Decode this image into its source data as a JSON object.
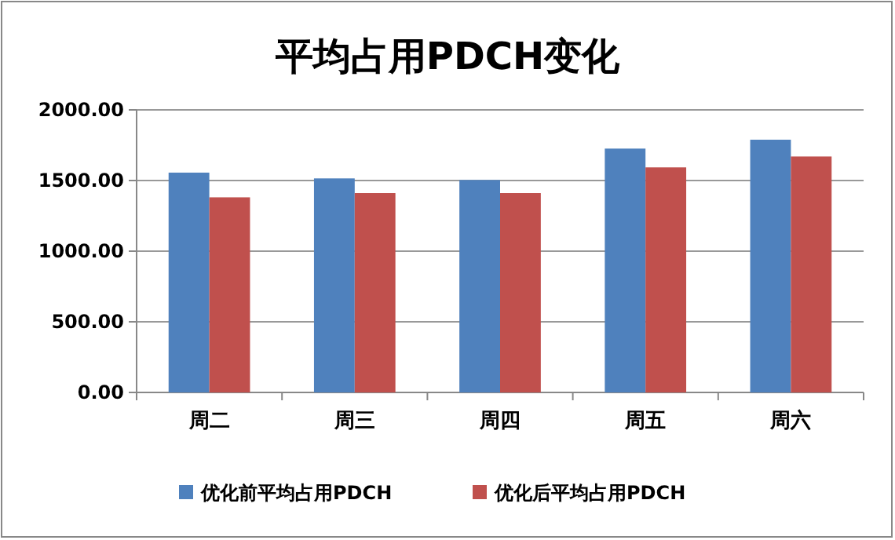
{
  "chart_data": {
    "type": "bar",
    "title": "平均占用PDCH变化",
    "categories": [
      "周二",
      "周三",
      "周四",
      "周五",
      "周六"
    ],
    "series": [
      {
        "name": "优化前平均占用PDCH",
        "color": "#4f81bd",
        "values": [
          1556,
          1515,
          1504,
          1726,
          1789
        ]
      },
      {
        "name": "优化后平均占用PDCH",
        "color": "#c0504d",
        "values": [
          1381,
          1411,
          1411,
          1593,
          1670
        ]
      }
    ],
    "ylim": [
      0,
      2000
    ],
    "yticks": [
      {
        "value": 0,
        "label": "0.00"
      },
      {
        "value": 500,
        "label": "500.00"
      },
      {
        "value": 1000,
        "label": "1000.00"
      },
      {
        "value": 1500,
        "label": "1500.00"
      },
      {
        "value": 2000,
        "label": "2000.00"
      }
    ],
    "grid": "y",
    "legend": "bottom"
  }
}
